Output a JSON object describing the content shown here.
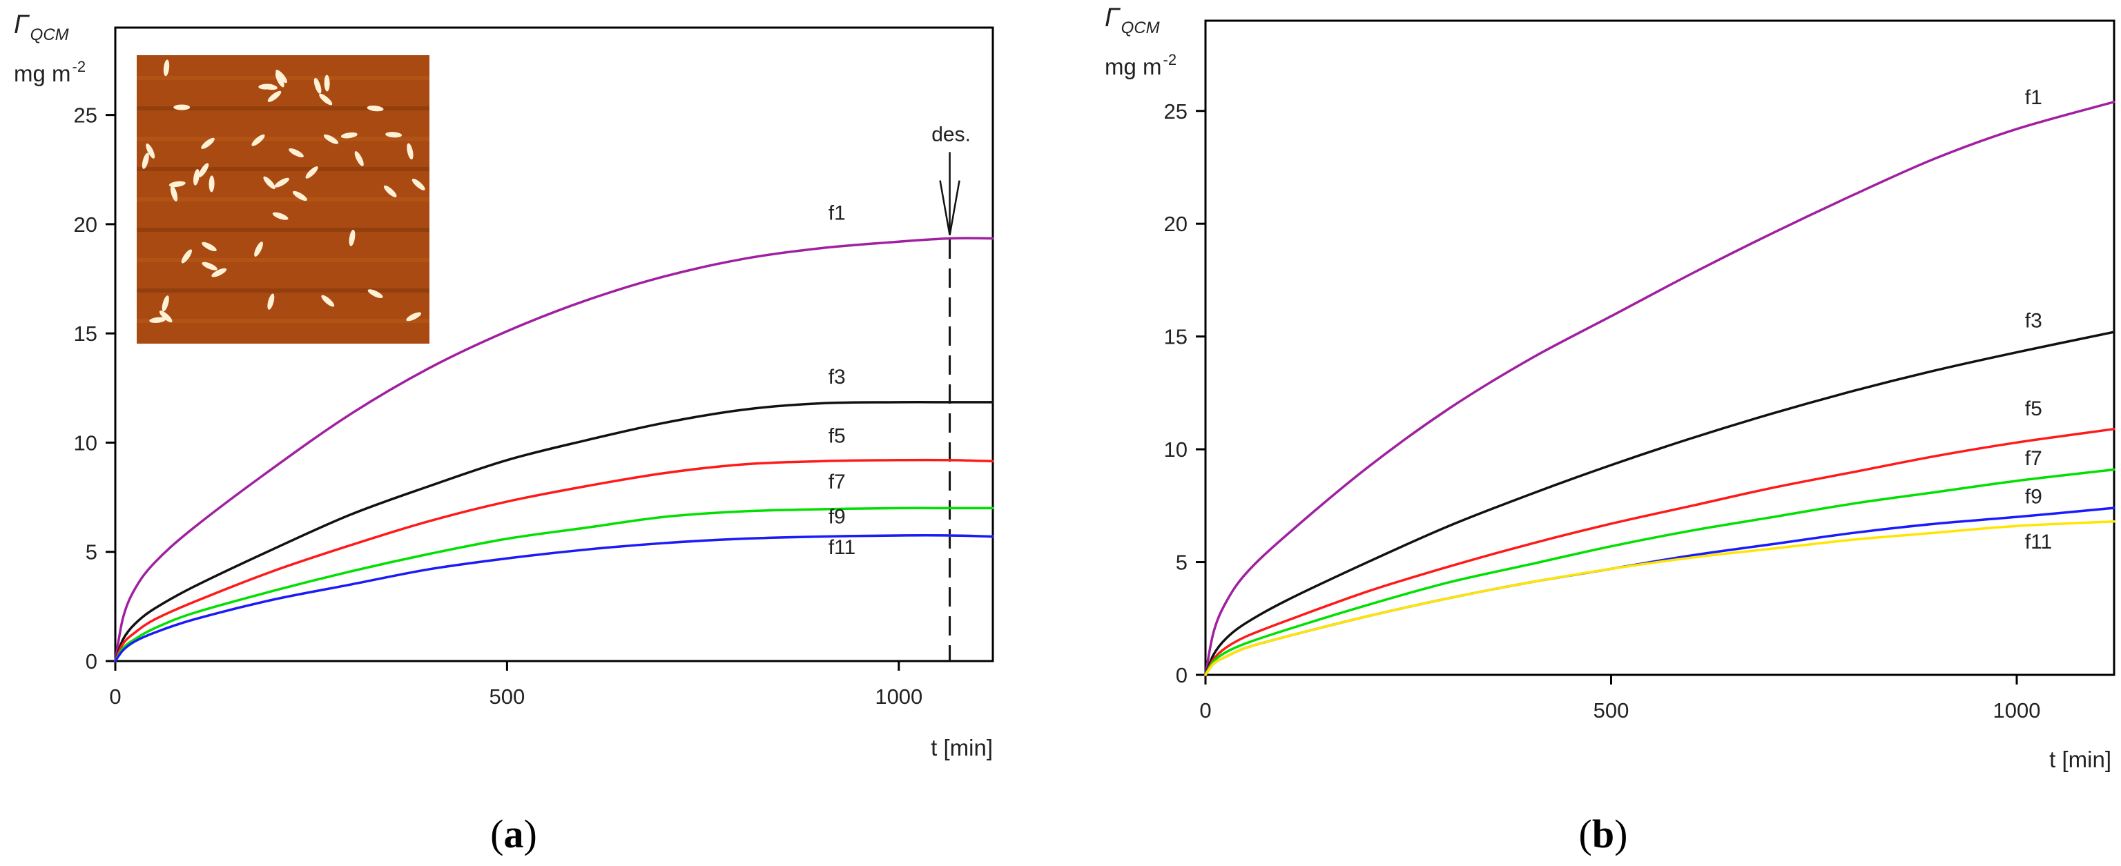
{
  "chart_data": [
    {
      "type": "line",
      "panel_label": "a",
      "panel_label_open": "(",
      "panel_label_close": ")",
      "ylabel_symbol": "Γ",
      "ylabel_subscript": "QCM",
      "ylabel_units": "mg m",
      "ylabel_units_exp": "-2",
      "xlabel": "t [min]",
      "xlim": [
        0,
        1120
      ],
      "ylim": [
        0,
        29
      ],
      "xticks": [
        0,
        500,
        1000
      ],
      "yticks": [
        0,
        5,
        10,
        15,
        20,
        25
      ],
      "inset": "AFM micrograph of adsorbed elongated particles",
      "annotation": {
        "text": "des.",
        "x": 1065
      },
      "series": [
        {
          "name": "f1",
          "color": "#A020A0",
          "x": [
            0,
            10,
            25,
            50,
            100,
            200,
            300,
            400,
            500,
            600,
            700,
            800,
            900,
            1000,
            1065,
            1120
          ],
          "values": [
            0,
            2.0,
            3.3,
            4.5,
            6.1,
            8.8,
            11.3,
            13.4,
            15.1,
            16.5,
            17.6,
            18.4,
            18.9,
            19.2,
            19.35,
            19.35
          ]
        },
        {
          "name": "f3",
          "color": "#111111",
          "x": [
            0,
            10,
            25,
            50,
            100,
            200,
            300,
            400,
            500,
            600,
            700,
            800,
            900,
            1000,
            1065,
            1120
          ],
          "values": [
            0,
            1.0,
            1.7,
            2.4,
            3.4,
            5.1,
            6.7,
            8.0,
            9.2,
            10.1,
            10.9,
            11.5,
            11.8,
            11.85,
            11.85,
            11.85
          ]
        },
        {
          "name": "f5",
          "color": "#FF1A1A",
          "x": [
            0,
            10,
            25,
            50,
            100,
            200,
            300,
            400,
            500,
            600,
            700,
            800,
            900,
            1000,
            1065,
            1120
          ],
          "values": [
            0,
            0.8,
            1.3,
            1.9,
            2.7,
            4.1,
            5.3,
            6.4,
            7.3,
            8.0,
            8.6,
            9.0,
            9.15,
            9.2,
            9.2,
            9.15
          ]
        },
        {
          "name": "f7",
          "color": "#00E000",
          "x": [
            0,
            10,
            25,
            50,
            100,
            200,
            300,
            400,
            500,
            600,
            700,
            800,
            900,
            1000,
            1065,
            1120
          ],
          "values": [
            0,
            0.6,
            1.0,
            1.5,
            2.2,
            3.2,
            4.1,
            4.9,
            5.6,
            6.1,
            6.6,
            6.85,
            6.95,
            7.0,
            7.0,
            7.0
          ]
        },
        {
          "name": "f9",
          "color": "#FFE600",
          "x": [
            0,
            10,
            25,
            50,
            100,
            200,
            300,
            400,
            500,
            600,
            700,
            800,
            900,
            1000,
            1065,
            1120
          ],
          "values": [
            0,
            0.5,
            0.9,
            1.3,
            1.9,
            2.8,
            3.5,
            4.2,
            4.7,
            5.1,
            5.4,
            5.6,
            5.7,
            5.75,
            5.75,
            5.7
          ]
        },
        {
          "name": "f11",
          "color": "#1A1AFF",
          "x": [
            0,
            10,
            25,
            50,
            100,
            200,
            300,
            400,
            500,
            600,
            700,
            800,
            900,
            1000,
            1065,
            1120
          ],
          "values": [
            0,
            0.5,
            0.9,
            1.3,
            1.9,
            2.8,
            3.5,
            4.2,
            4.7,
            5.1,
            5.4,
            5.6,
            5.7,
            5.75,
            5.75,
            5.7
          ]
        }
      ],
      "labels": [
        {
          "text": "f1",
          "x": 910,
          "y": 20.2
        },
        {
          "text": "f3",
          "x": 910,
          "y": 12.7
        },
        {
          "text": "f5",
          "x": 910,
          "y": 10.0
        },
        {
          "text": "f7",
          "x": 910,
          "y": 7.9
        },
        {
          "text": "f9",
          "x": 910,
          "y": 6.3
        },
        {
          "text": "f11",
          "x": 910,
          "y": 4.9
        }
      ]
    },
    {
      "type": "line",
      "panel_label": "b",
      "panel_label_open": "(",
      "panel_label_close": ")",
      "ylabel_symbol": "Γ",
      "ylabel_subscript": "QCM",
      "ylabel_units": "mg m",
      "ylabel_units_exp": "-2",
      "xlabel": "t [min]",
      "xlim": [
        0,
        1120
      ],
      "ylim": [
        0,
        29
      ],
      "xticks": [
        0,
        500,
        1000
      ],
      "yticks": [
        0,
        5,
        10,
        15,
        20,
        25
      ],
      "series": [
        {
          "name": "f1",
          "color": "#A020A0",
          "x": [
            0,
            10,
            25,
            50,
            100,
            200,
            300,
            400,
            500,
            600,
            700,
            800,
            900,
            1000,
            1120
          ],
          "values": [
            0,
            1.9,
            3.2,
            4.5,
            6.2,
            9.2,
            11.8,
            14.0,
            15.9,
            17.8,
            19.6,
            21.3,
            22.9,
            24.2,
            25.4
          ]
        },
        {
          "name": "f3",
          "color": "#111111",
          "x": [
            0,
            10,
            25,
            50,
            100,
            200,
            300,
            400,
            500,
            600,
            700,
            800,
            900,
            1000,
            1120
          ],
          "values": [
            0,
            0.9,
            1.6,
            2.3,
            3.3,
            5.0,
            6.6,
            8.0,
            9.3,
            10.5,
            11.6,
            12.6,
            13.5,
            14.3,
            15.2
          ]
        },
        {
          "name": "f5",
          "color": "#FF1A1A",
          "x": [
            0,
            10,
            25,
            50,
            100,
            200,
            300,
            400,
            500,
            600,
            700,
            800,
            900,
            1000,
            1120
          ],
          "values": [
            0,
            0.7,
            1.2,
            1.7,
            2.4,
            3.7,
            4.8,
            5.8,
            6.7,
            7.5,
            8.3,
            9.0,
            9.7,
            10.3,
            10.9
          ]
        },
        {
          "name": "f7",
          "color": "#00E000",
          "x": [
            0,
            10,
            25,
            50,
            100,
            200,
            300,
            400,
            500,
            600,
            700,
            800,
            900,
            1000,
            1120
          ],
          "values": [
            0,
            0.6,
            1.0,
            1.4,
            2.0,
            3.1,
            4.1,
            4.9,
            5.7,
            6.4,
            7.0,
            7.6,
            8.1,
            8.6,
            9.1
          ]
        },
        {
          "name": "f9",
          "color": "#1A1AFF",
          "x": [
            0,
            10,
            25,
            50,
            100,
            200,
            300,
            400,
            500,
            600,
            700,
            800,
            900,
            1000,
            1120
          ],
          "values": [
            0,
            0.5,
            0.8,
            1.2,
            1.7,
            2.6,
            3.4,
            4.1,
            4.7,
            5.3,
            5.8,
            6.3,
            6.7,
            7.0,
            7.4
          ]
        },
        {
          "name": "f11",
          "color": "#FFE600",
          "x": [
            0,
            10,
            25,
            50,
            100,
            200,
            300,
            400,
            500,
            600,
            700,
            800,
            900,
            1000,
            1120
          ],
          "values": [
            0,
            0.5,
            0.8,
            1.2,
            1.7,
            2.6,
            3.4,
            4.1,
            4.7,
            5.2,
            5.6,
            6.0,
            6.3,
            6.6,
            6.8
          ]
        }
      ],
      "labels": [
        {
          "text": "f1",
          "x": 1010,
          "y": 25.3
        },
        {
          "text": "f3",
          "x": 1010,
          "y": 15.4
        },
        {
          "text": "f5",
          "x": 1010,
          "y": 11.5
        },
        {
          "text": "f7",
          "x": 1010,
          "y": 9.3
        },
        {
          "text": "f9",
          "x": 1010,
          "y": 7.6
        },
        {
          "text": "f11",
          "x": 1010,
          "y": 5.6
        }
      ]
    }
  ]
}
